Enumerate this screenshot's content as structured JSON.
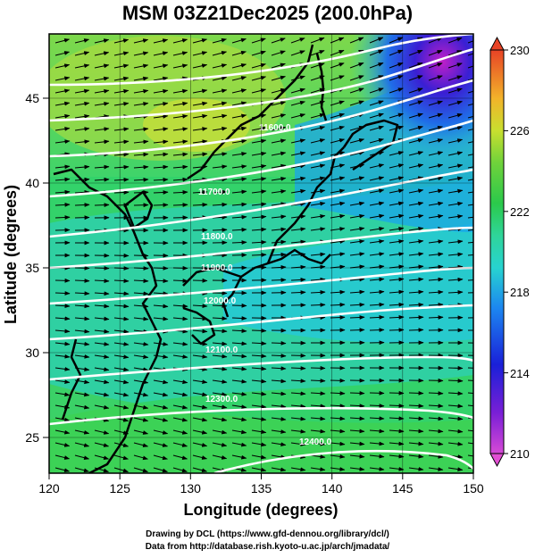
{
  "title": "MSM 03Z21Dec2025 (200.0hPa)",
  "map": {
    "x_axis_label": "Longitude (degrees)",
    "y_axis_label": "Latitude  (degrees)",
    "x_ticks": [
      "120",
      "125",
      "130",
      "135",
      "140",
      "145",
      "150"
    ],
    "y_ticks": [
      "25",
      "30",
      "35",
      "40",
      "45"
    ],
    "lon_range": [
      120,
      150
    ],
    "lat_range": [
      22.4,
      47.6
    ],
    "contour_labels": [
      "11600.0",
      "11700.0",
      "11800.0",
      "11900.0",
      "12000.0",
      "12100.0",
      "12300.0",
      "12400.0"
    ],
    "colorbar_labels": [
      "230",
      "226",
      "222",
      "218",
      "214",
      "210"
    ],
    "colorbar_range": [
      210,
      230
    ],
    "shaded_variable_min_max": [
      210,
      230
    ]
  },
  "credits": {
    "line1": "Drawing by DCL (https://www.gfd-dennou.org/library/dcl/)",
    "line2": "Data from http://database.rish.kyoto-u.ac.jp/arch/jmadata/"
  }
}
